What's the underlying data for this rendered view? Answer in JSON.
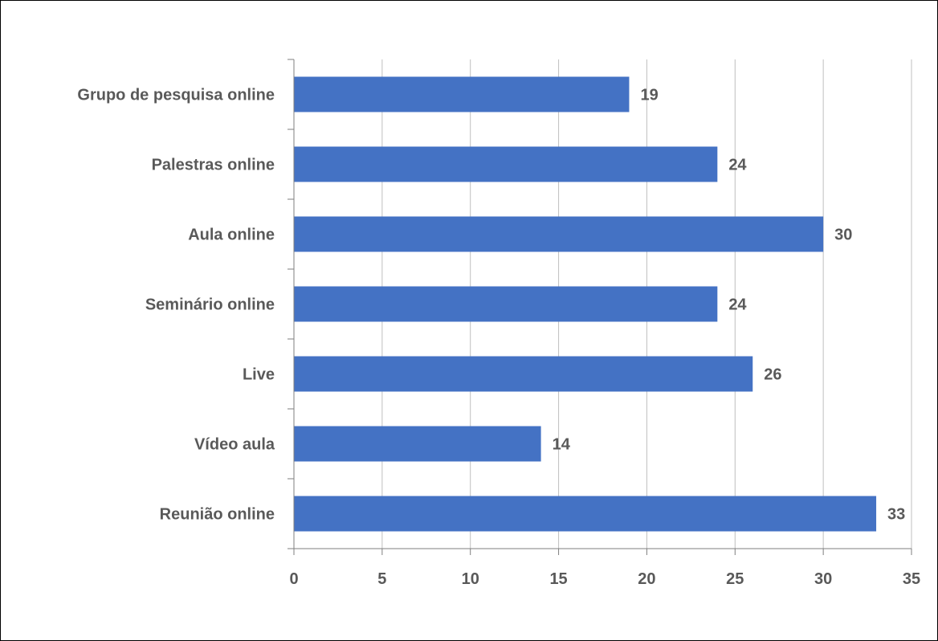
{
  "chart_data": {
    "type": "bar",
    "orientation": "horizontal",
    "categories": [
      "Grupo de pesquisa online",
      "Palestras online",
      "Aula online",
      "Seminário online",
      "Live",
      "Vídeo aula",
      "Reunião online"
    ],
    "values": [
      19,
      24,
      30,
      24,
      26,
      14,
      33
    ],
    "data_labels": [
      "19",
      "24",
      "30",
      "24",
      "26",
      "14",
      "33"
    ],
    "title": "",
    "xlabel": "",
    "ylabel": "",
    "xlim": [
      0,
      35
    ],
    "x_ticks": [
      0,
      5,
      10,
      15,
      20,
      25,
      30,
      35
    ],
    "x_tick_labels": [
      "0",
      "5",
      "10",
      "15",
      "20",
      "25",
      "30",
      "35"
    ],
    "grid": "vertical",
    "legend": "none",
    "colors": {
      "bar": "#4472c4",
      "gridline": "#bfbfbf",
      "axis": "#7f7f7f",
      "text": "#595959",
      "border": "#000000"
    }
  }
}
